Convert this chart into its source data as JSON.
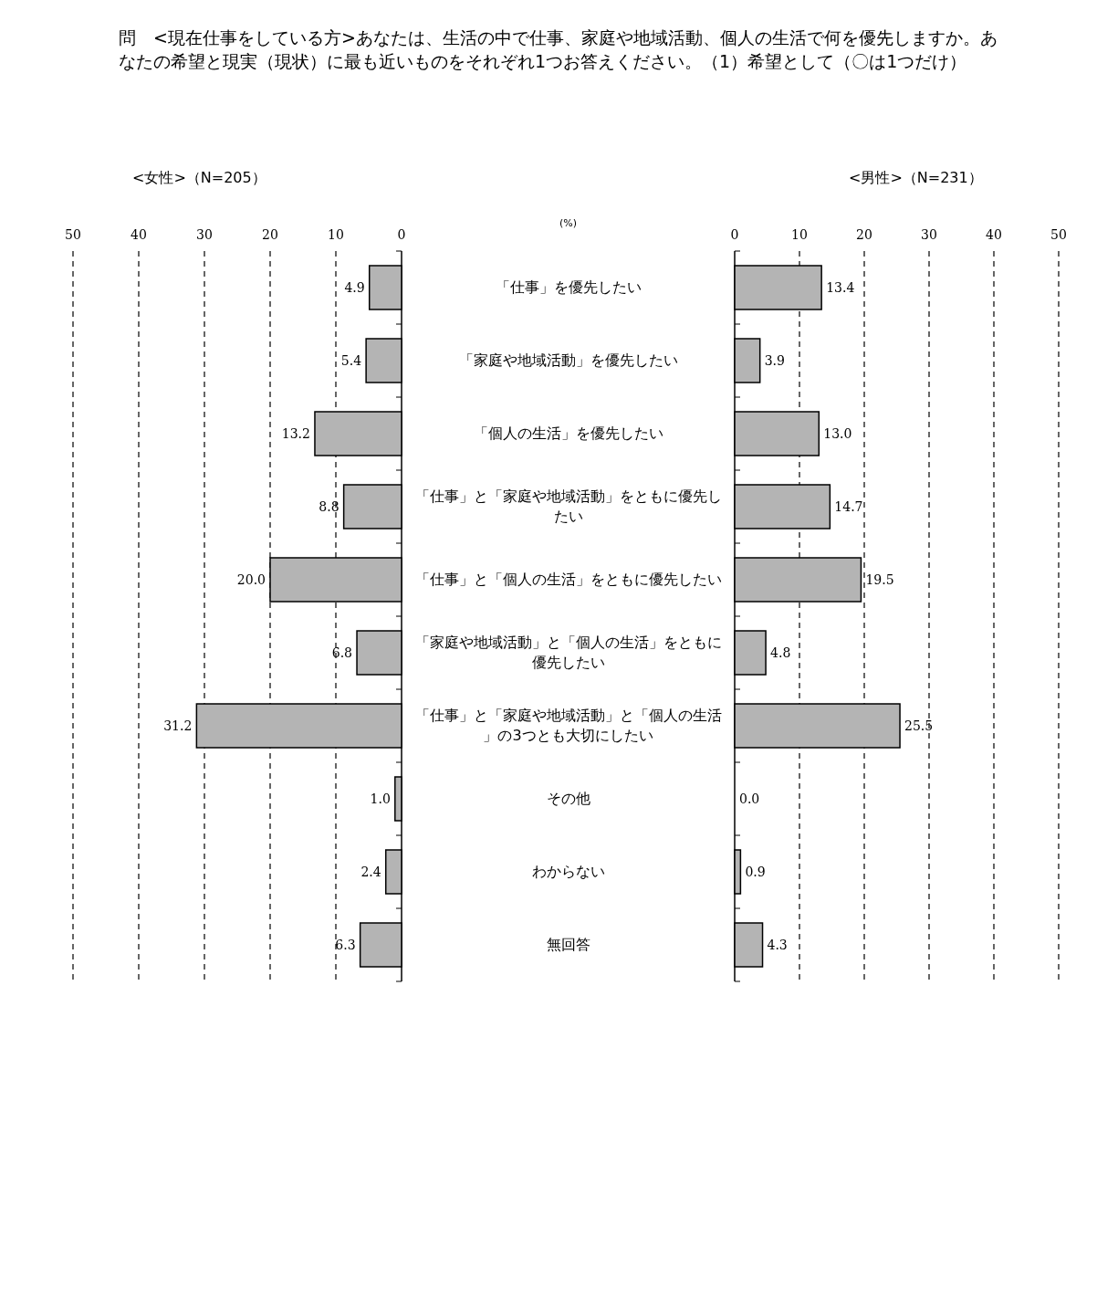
{
  "chart_data": [
    {
      "type": "bar",
      "orientation": "horizontal",
      "title": "問　<現在仕事をしている方>あなたは、生活の中で仕事、家庭や地域活動、個人の生活で何を優先しますか。あなたの希望と現実（現状）に最も近いものをそれぞれ1つお答えください。（1）希望として（〇は1つだけ）",
      "subtitle": "<女性>（N=205）",
      "annotations": [
        "(%)"
      ],
      "categories": [
        "「仕事」を優先したい",
        "「家庭や地域活動」を優先したい",
        "「個人の生活」を優先したい",
        "「仕事」と「家庭や地域活動」をともに優先したい",
        "「仕事」と「個人の生活」をともに優先したい",
        "「家庭や地域活動」と「個人の生活」をともに優先したい",
        "「仕事」と「家庭や地域活動」と「個人の生活」の3つとも大切にしたい",
        "その他",
        "わからない",
        "無回答"
      ],
      "values": [
        4.9,
        5.4,
        13.2,
        8.8,
        20.0,
        6.8,
        31.2,
        1.0,
        2.4,
        6.3
      ],
      "value_labels": [
        "4.9",
        "5.4",
        "13.2",
        "8.8",
        "20.0",
        "6.8",
        "31.2",
        "1.0",
        "2.4",
        "6.3"
      ],
      "color": "#b4b4b4",
      "xlim": [
        50,
        0
      ],
      "xticks": [
        50,
        40,
        30,
        20,
        10,
        0
      ],
      "grid": "x",
      "legend": false
    },
    {
      "type": "bar",
      "orientation": "horizontal",
      "title": "<男性>（N=231）",
      "categories": [
        null,
        null,
        null,
        null,
        null,
        null,
        null,
        null,
        null,
        null
      ],
      "values": [
        13.4,
        3.9,
        13.0,
        14.7,
        19.5,
        4.8,
        25.5,
        0.0,
        0.9,
        4.3
      ],
      "value_labels": [
        "13.4",
        "3.9",
        "13.0",
        "14.7",
        "19.5",
        "4.8",
        "25.5",
        "0.0",
        "0.9",
        "4.3"
      ],
      "color": "#b4b4b4",
      "xlim": [
        0,
        50
      ],
      "xticks": [
        0,
        10,
        20,
        30,
        40,
        50
      ],
      "grid": "x",
      "legend": false
    }
  ]
}
